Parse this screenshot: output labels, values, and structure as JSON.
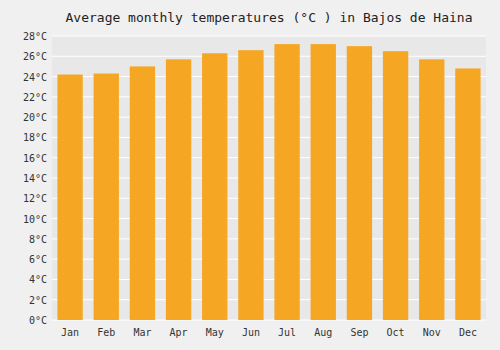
{
  "chart_data": {
    "type": "bar",
    "title": "Average monthly temperatures (°C ) in Bajos de Haina",
    "categories": [
      "Jan",
      "Feb",
      "Mar",
      "Apr",
      "May",
      "Jun",
      "Jul",
      "Aug",
      "Sep",
      "Oct",
      "Nov",
      "Dec"
    ],
    "values": [
      24.2,
      24.3,
      25.0,
      25.7,
      26.3,
      26.6,
      27.2,
      27.2,
      27.0,
      26.5,
      25.7,
      24.8
    ],
    "color": "#F5A623",
    "ylim": [
      0,
      28
    ],
    "yticks": [
      {
        "value": 0,
        "label": "0°C"
      },
      {
        "value": 2,
        "label": "2°C"
      },
      {
        "value": 4,
        "label": "4°C"
      },
      {
        "value": 6,
        "label": "6°C"
      },
      {
        "value": 8,
        "label": "8°C"
      },
      {
        "value": 10,
        "label": "10°C"
      },
      {
        "value": 12,
        "label": "12°C"
      },
      {
        "value": 14,
        "label": "14°C"
      },
      {
        "value": 16,
        "label": "16°C"
      },
      {
        "value": 18,
        "label": "18°C"
      },
      {
        "value": 20,
        "label": "20°C"
      },
      {
        "value": 22,
        "label": "22°C"
      },
      {
        "value": 24,
        "label": "24°C"
      },
      {
        "value": 26,
        "label": "26°C"
      },
      {
        "value": 28,
        "label": "28°C"
      }
    ],
    "grid": true
  }
}
